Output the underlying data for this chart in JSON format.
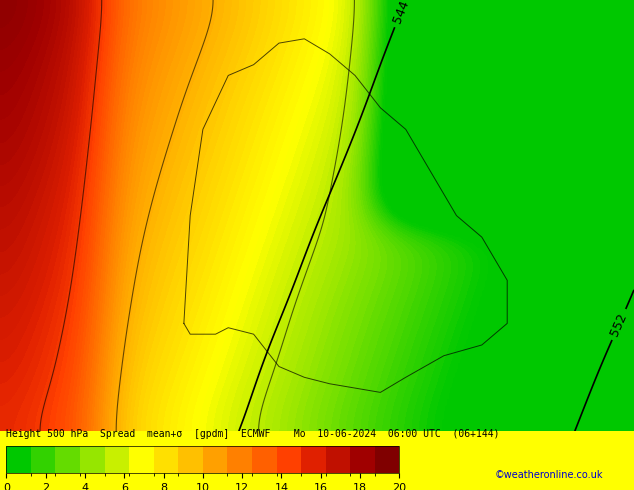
{
  "title_text": "Height 500 hPa  Spread  mean+σ  [gpdm]  ECMWF    Mo  10-06-2024  06:00 UTC  (06+144)",
  "colorbar_label": "",
  "cbar_ticks": [
    0,
    2,
    4,
    6,
    8,
    10,
    12,
    14,
    16,
    18,
    20
  ],
  "cbar_colors": [
    "#00c800",
    "#32d200",
    "#64dc00",
    "#96e600",
    "#c8f000",
    "#ffff00",
    "#ffe000",
    "#ffc000",
    "#ffa000",
    "#ff8000",
    "#ff6000",
    "#ff4000",
    "#e02000",
    "#c01000",
    "#a00000",
    "#800000",
    "#600000",
    "#400000",
    "#200000",
    "#100000"
  ],
  "watermark": "©weatheronline.co.uk",
  "contour_labels": [
    "544",
    "552"
  ],
  "bg_color": "#ffff00",
  "map_bg": "#ffffff",
  "fig_width": 6.34,
  "fig_height": 4.9,
  "dpi": 100
}
